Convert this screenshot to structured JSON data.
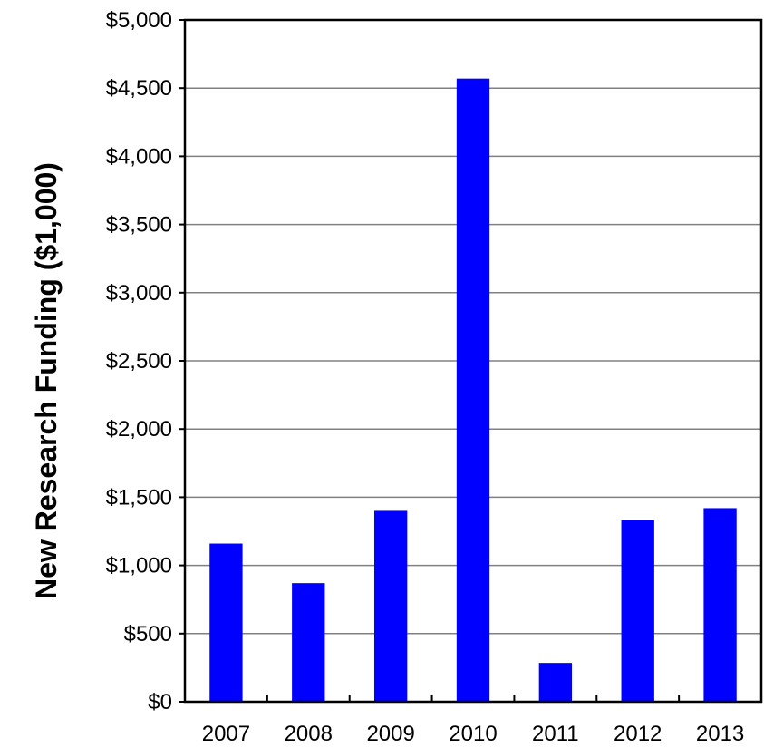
{
  "chart_data": {
    "type": "bar",
    "title": "",
    "xlabel": "",
    "ylabel": "New Research Funding ($1,000)",
    "categories": [
      "2007",
      "2008",
      "2009",
      "2010",
      "2011",
      "2012",
      "2013"
    ],
    "series": [
      {
        "values": [
          1160,
          870,
          1400,
          4570,
          285,
          1330,
          1420
        ]
      }
    ],
    "ylim": [
      0,
      5000
    ],
    "yticks": [
      0,
      500,
      1000,
      1500,
      2000,
      2500,
      3000,
      3500,
      4000,
      4500,
      5000
    ],
    "ytick_labels": [
      "$0",
      "$500",
      "$1,000",
      "$1,500",
      "$2,000",
      "$2,500",
      "$3,000",
      "$3,500",
      "$4,000",
      "$4,500",
      "$5,000"
    ],
    "grid": true,
    "legend": "none",
    "colors": {
      "bar": "#0000FF",
      "grid": "#808080",
      "axis": "#000000"
    }
  }
}
